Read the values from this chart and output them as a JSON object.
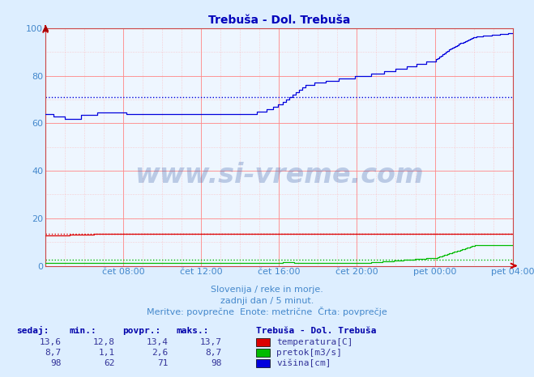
{
  "title": "Trebuša - Dol. Trebuša",
  "bg_color": "#ddeeff",
  "plot_bg_color": "#eef6ff",
  "title_color": "#0000bb",
  "watermark_color": "#4466aa",
  "ylabel_color": "#4488cc",
  "xlabel_color": "#4488cc",
  "ylim": [
    0,
    100
  ],
  "yticks": [
    0,
    20,
    40,
    60,
    80,
    100
  ],
  "x_labels": [
    "",
    "čet 08:00",
    "čet 12:00",
    "čet 16:00",
    "čet 20:00",
    "pet 00:00",
    "pet 04:00"
  ],
  "subtitle1": "Slovenija / reke in morje.",
  "subtitle2": "zadnji dan / 5 minut.",
  "subtitle3": "Meritve: povprečne  Enote: metrične  Črta: povprečje",
  "legend_title": "Trebuša - Dol. Trebuša",
  "legend_items": [
    {
      "label": "temperatura[C]",
      "color": "#dd0000"
    },
    {
      "label": "pretok[m3/s]",
      "color": "#00bb00"
    },
    {
      "label": "višina[cm]",
      "color": "#0000dd"
    }
  ],
  "stats_headers": [
    "sedaj:",
    "min.:",
    "povpr.:",
    "maks.:"
  ],
  "stats_rows": [
    [
      "13,6",
      "12,8",
      "13,4",
      "13,7"
    ],
    [
      "8,7",
      "1,1",
      "2,6",
      "8,7"
    ],
    [
      "98",
      "62",
      "71",
      "98"
    ]
  ],
  "temp_avg": 13.4,
  "pretok_avg": 2.6,
  "visina_avg": 71,
  "n_points": 288
}
